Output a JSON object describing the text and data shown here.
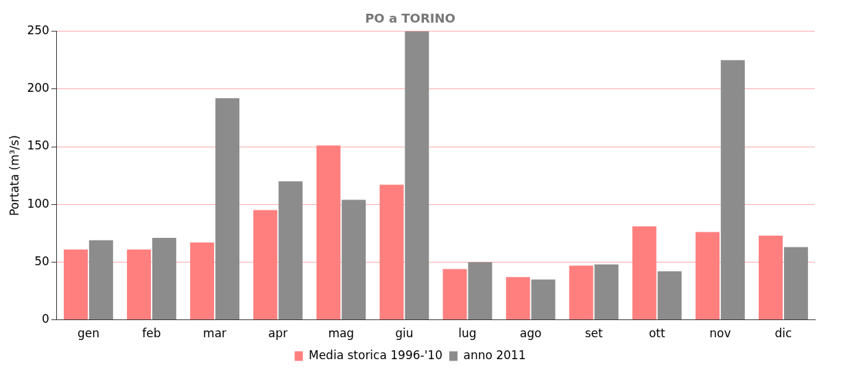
{
  "chart_data": {
    "type": "bar",
    "title": "PO a TORINO",
    "ylabel": "Portata (m³/s)",
    "categories": [
      "gen",
      "feb",
      "mar",
      "apr",
      "mag",
      "giu",
      "lug",
      "ago",
      "set",
      "ott",
      "nov",
      "dic"
    ],
    "series": [
      {
        "name": "Media storica 1996-'10",
        "color": "#ff7f7f",
        "values": [
          61,
          61,
          67,
          95,
          151,
          117,
          44,
          37,
          47,
          81,
          76,
          73
        ]
      },
      {
        "name": "anno 2011",
        "color": "#8c8c8c",
        "values": [
          69,
          71,
          192,
          120,
          104,
          250,
          50,
          35,
          48,
          42,
          225,
          63
        ]
      }
    ],
    "ylim": [
      0,
      250
    ],
    "yticks": [
      0,
      50,
      100,
      150,
      200,
      250
    ],
    "grid": "y",
    "legend": "bottom"
  }
}
